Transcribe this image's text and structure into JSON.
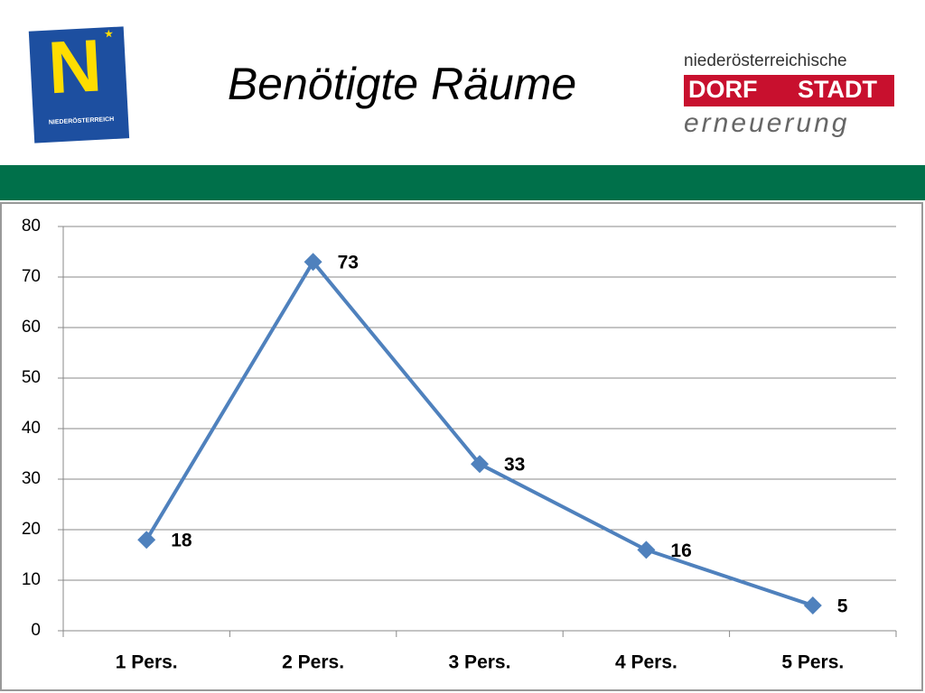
{
  "logos": {
    "left_letter": "N",
    "left_text": "NIEDERÖSTERREICH",
    "right_top": "niederösterreichische",
    "right_left": "DORF",
    "right_right": "STADT",
    "right_bottom": "erneuerung"
  },
  "chart_data": {
    "type": "line",
    "title": "Benötigte Räume",
    "categories": [
      "1 Pers.",
      "2 Pers.",
      "3 Pers.",
      "4 Pers.",
      "5 Pers."
    ],
    "values": [
      18,
      73,
      33,
      16,
      5
    ],
    "color": "#4f81bd",
    "ylim": [
      0,
      80
    ],
    "yticks": [
      0,
      10,
      20,
      30,
      40,
      50,
      60,
      70,
      80
    ],
    "grid": true
  }
}
